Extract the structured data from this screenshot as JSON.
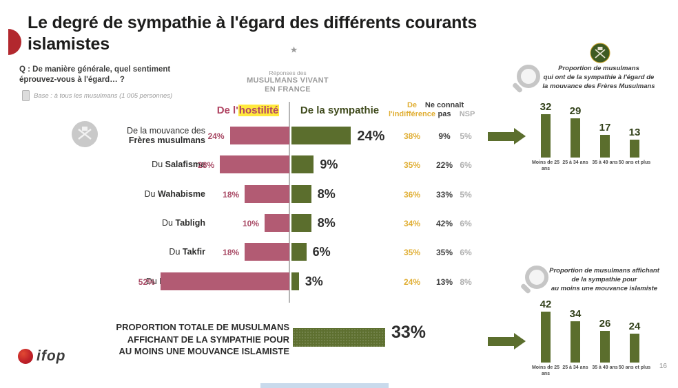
{
  "slide": {
    "title": "Le degré de sympathie à l'égard des différents courants islamistes",
    "page_number": "16",
    "logo_text": "ifop"
  },
  "question": {
    "text": "Q : De manière générale, quel sentiment éprouvez-vous à l'égard… ?",
    "base": "Base : à tous les musulmans (1 005 personnes)"
  },
  "badge": {
    "line1": "Réponses des",
    "line2": "MUSULMANS VIVANT",
    "line3": "EN FRANCE"
  },
  "headers": {
    "hostility_prefix": "De l'",
    "hostility_highlight": "hostilité",
    "sympathy": "De la sympathie",
    "indifference_line1": "De",
    "indifference_line2": "l'indifférence",
    "dont_know_line1": "Ne connaît",
    "dont_know_line2": "pas",
    "nsp": "NSP"
  },
  "main_chart": {
    "rows": [
      {
        "key": "freres-musulmans",
        "pre": "De la mouvance des",
        "name": "Frères musulmans",
        "stack": true,
        "hostility": 24,
        "sympathy": 24,
        "indifference": 38,
        "dont_know": 9,
        "nsp": 5
      },
      {
        "key": "salafisme",
        "pre": "Du",
        "name": "Salafisme",
        "stack": false,
        "hostility": 28,
        "sympathy": 9,
        "indifference": 35,
        "dont_know": 22,
        "nsp": 6
      },
      {
        "key": "wahabisme",
        "pre": "Du",
        "name": "Wahabisme",
        "stack": false,
        "hostility": 18,
        "sympathy": 8,
        "indifference": 36,
        "dont_know": 33,
        "nsp": 5
      },
      {
        "key": "tabligh",
        "pre": "Du",
        "name": "Tabligh",
        "stack": false,
        "hostility": 10,
        "sympathy": 8,
        "indifference": 34,
        "dont_know": 42,
        "nsp": 6
      },
      {
        "key": "takfir",
        "pre": "Du",
        "name": "Takfir",
        "stack": false,
        "hostility": 18,
        "sympathy": 6,
        "indifference": 35,
        "dont_know": 35,
        "nsp": 6
      },
      {
        "key": "djihadisme",
        "pre": "Du",
        "name": "Djihadisme",
        "stack": false,
        "hostility": 52,
        "sympathy": 3,
        "indifference": 24,
        "dont_know": 13,
        "nsp": 8
      }
    ]
  },
  "total": {
    "line1": "PROPORTION TOTALE DE MUSULMANS",
    "line2": "AFFICHANT DE LA SYMPATHIE POUR",
    "line3": "AU MOINS UNE MOUVANCE ISLAMISTE",
    "value": 33,
    "display": "33%"
  },
  "mini_top": {
    "title_lines": [
      "Proportion de musulmans",
      "qui ont de la sympathie à l'égard de",
      "la mouvance des Frères Musulmans"
    ],
    "bars": [
      {
        "label": "Moins de 25 ans",
        "value": 32
      },
      {
        "label": "25 à 34 ans",
        "value": 29
      },
      {
        "label": "35 à 49 ans",
        "value": 17
      },
      {
        "label": "50 ans et plus",
        "value": 13
      }
    ]
  },
  "mini_bottom": {
    "title_lines": [
      "Proportion de musulmans affichant",
      "de la sympathie pour",
      "au moins une mouvance islamiste"
    ],
    "bars": [
      {
        "label": "Moins de 25 ans",
        "value": 42
      },
      {
        "label": "25 à 34 ans",
        "value": 34
      },
      {
        "label": "35 à 49 ans",
        "value": 26
      },
      {
        "label": "50 ans et plus",
        "value": 24
      }
    ]
  },
  "colors": {
    "hostility": "#b25b73",
    "sympathy": "#5b6e2d",
    "indifference": "#e0ae33",
    "dont_know": "#3f3f3f",
    "nsp": "#aeaeae",
    "accent_red": "#b2282e",
    "highlight_yellow": "#ffe93d"
  },
  "chart_data": [
    {
      "type": "bar",
      "subtype": "diverging-horizontal",
      "title": "Le degré de sympathie à l'égard des différents courants islamistes",
      "categories": [
        "De la mouvance des Frères musulmans",
        "Du Salafisme",
        "Du Wahabisme",
        "Du Tabligh",
        "Du Takfir",
        "Du Djihadisme"
      ],
      "series": [
        {
          "name": "De l'hostilité",
          "values": [
            24,
            28,
            18,
            10,
            18,
            52
          ]
        },
        {
          "name": "De la sympathie",
          "values": [
            24,
            9,
            8,
            8,
            6,
            3
          ]
        },
        {
          "name": "De l'indifférence",
          "values": [
            38,
            35,
            36,
            34,
            35,
            24
          ]
        },
        {
          "name": "Ne connaît pas",
          "values": [
            9,
            22,
            33,
            42,
            35,
            13
          ]
        },
        {
          "name": "NSP",
          "values": [
            5,
            6,
            5,
            6,
            6,
            8
          ]
        }
      ],
      "unit": "%",
      "notes": "hostility bars extend left, sympathy bars extend right of a central divider; indifference / ne connaît pas / NSP shown as text columns"
    },
    {
      "type": "bar",
      "title": "Proportion de musulmans qui ont de la sympathie à l'égard de la mouvance des Frères Musulmans",
      "categories": [
        "Moins de 25 ans",
        "25 à 34 ans",
        "35 à 49 ans",
        "50 ans et plus"
      ],
      "values": [
        32,
        29,
        17,
        13
      ],
      "unit": "%"
    },
    {
      "type": "bar",
      "title": "Proportion de musulmans affichant de la sympathie pour au moins une mouvance islamiste",
      "categories": [
        "Moins de 25 ans",
        "25 à 34 ans",
        "35 à 49 ans",
        "50 ans et plus"
      ],
      "values": [
        42,
        34,
        26,
        24
      ],
      "unit": "%"
    },
    {
      "type": "bar",
      "title": "Proportion totale de musulmans affichant de la sympathie pour au moins une mouvance islamiste",
      "categories": [
        "Total"
      ],
      "values": [
        33
      ],
      "unit": "%"
    }
  ]
}
